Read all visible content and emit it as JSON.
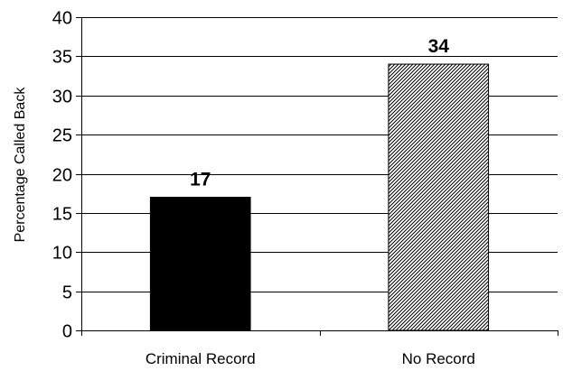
{
  "chart_data": {
    "type": "bar",
    "title": "",
    "xlabel": "",
    "ylabel": "Percentage Called Back",
    "categories": [
      "Criminal Record",
      "No Record"
    ],
    "values": [
      17,
      34
    ],
    "data_labels": [
      "17",
      "34"
    ],
    "ylim": [
      0,
      40
    ],
    "yticks": [
      0,
      5,
      10,
      15,
      20,
      25,
      30,
      35,
      40
    ],
    "grid": true,
    "legend": "none",
    "bar_styles": [
      {
        "fill": "solid",
        "color": "#000000"
      },
      {
        "fill": "diagonal-hatch",
        "color": "#000000"
      }
    ]
  }
}
